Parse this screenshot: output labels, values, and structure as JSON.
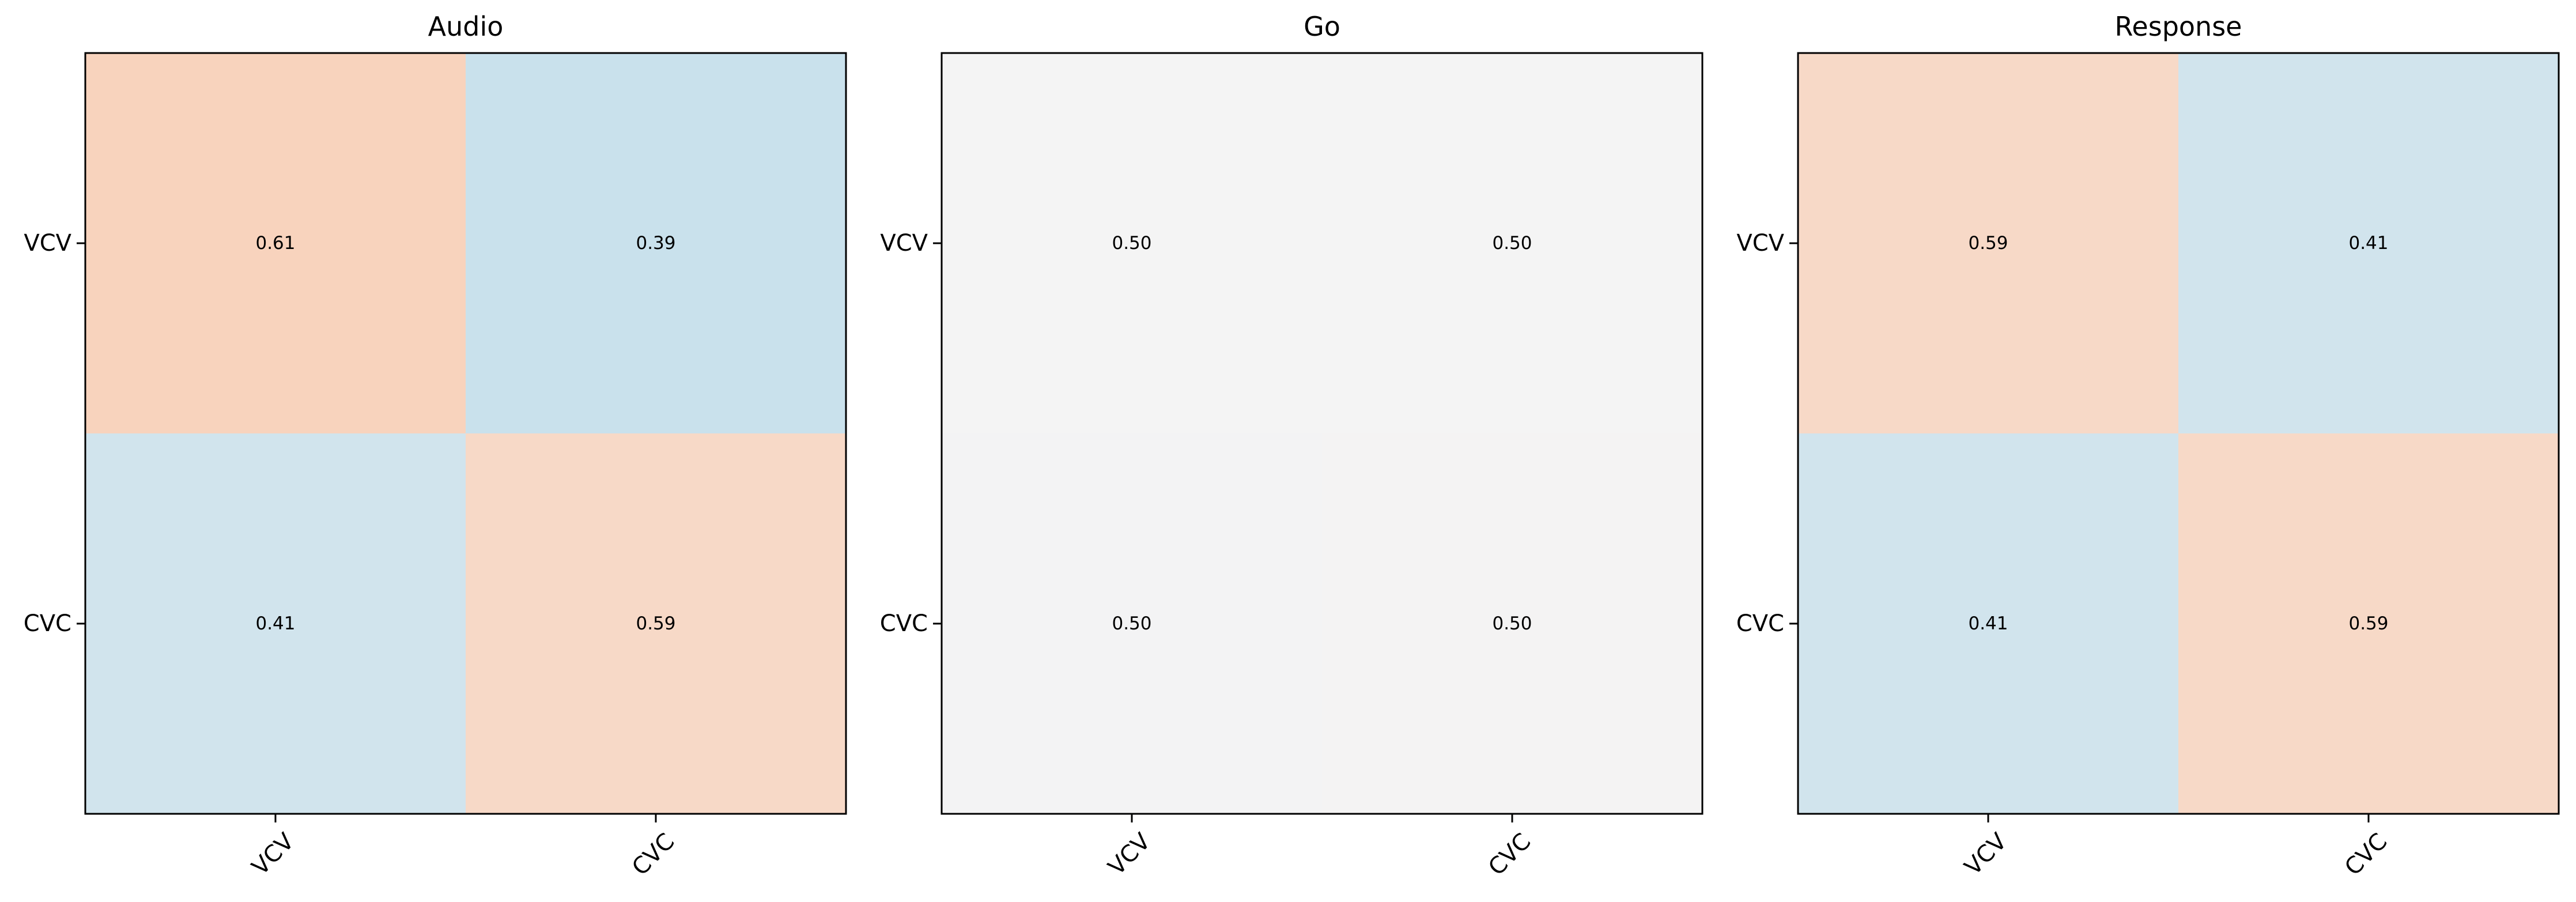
{
  "colors": {
    "low": "#c9e1ec",
    "mid": "#f4f4f4",
    "high": "#f8d3bd",
    "frame": "#000000",
    "text": "#000000"
  },
  "chart_data": [
    {
      "type": "heatmap",
      "title": "Audio",
      "rows": [
        "VCV",
        "CVC"
      ],
      "columns": [
        "VCV",
        "CVC"
      ],
      "values": [
        [
          0.61,
          0.39
        ],
        [
          0.41,
          0.59
        ]
      ],
      "value_labels": [
        [
          "0.61",
          "0.39"
        ],
        [
          "0.41",
          "0.59"
        ]
      ],
      "color_range": [
        0.39,
        0.61
      ]
    },
    {
      "type": "heatmap",
      "title": "Go",
      "rows": [
        "VCV",
        "CVC"
      ],
      "columns": [
        "VCV",
        "CVC"
      ],
      "values": [
        [
          0.5,
          0.5
        ],
        [
          0.497,
          0.503
        ]
      ],
      "value_labels": [
        [
          "0.50",
          "0.50"
        ],
        [
          "0.50",
          "0.50"
        ]
      ],
      "color_range": [
        0.39,
        0.61
      ]
    },
    {
      "type": "heatmap",
      "title": "Response",
      "rows": [
        "VCV",
        "CVC"
      ],
      "columns": [
        "VCV",
        "CVC"
      ],
      "values": [
        [
          0.59,
          0.41
        ],
        [
          0.41,
          0.59
        ]
      ],
      "value_labels": [
        [
          "0.59",
          "0.41"
        ],
        [
          "0.41",
          "0.59"
        ]
      ],
      "color_range": [
        0.39,
        0.61
      ]
    }
  ]
}
